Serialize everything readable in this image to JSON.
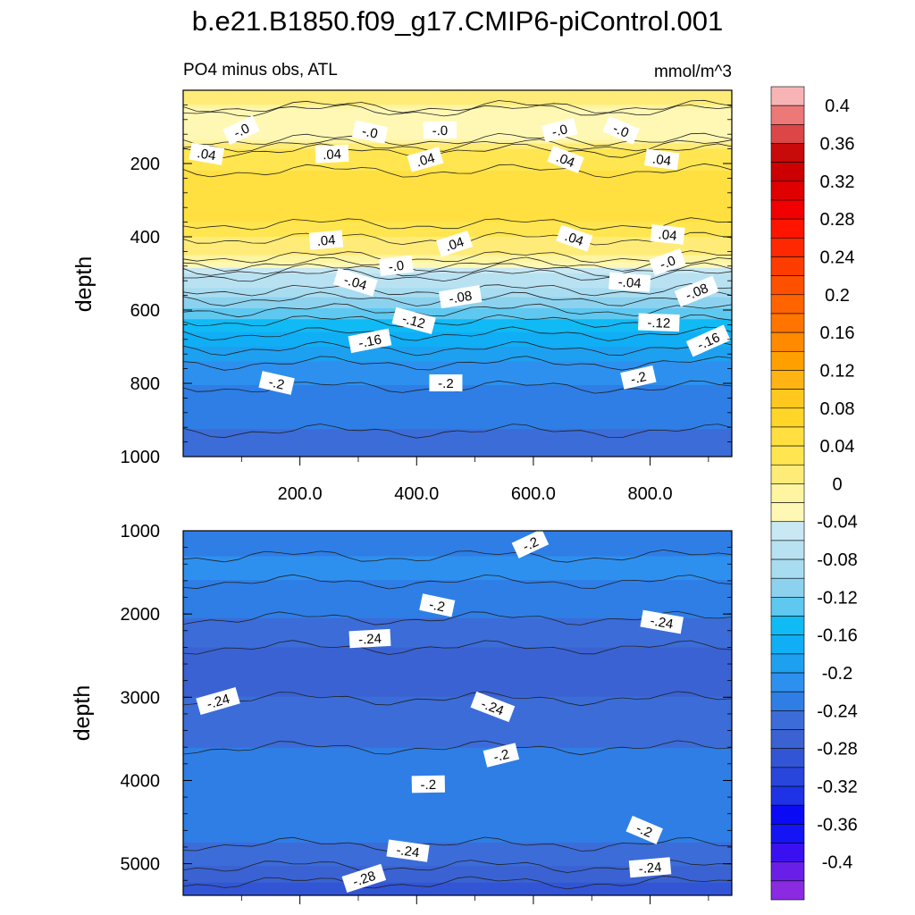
{
  "figure": {
    "title": "b.e21.B1850.f09_g17.CMIP6-piControl.001"
  },
  "chart_data": {
    "type": "heatmap",
    "title": "b.e21.B1850.f09_g17.CMIP6-piControl.001",
    "subtitle_left": "PO4 minus obs, ATL",
    "units": "mmol/m^3",
    "ylabel": "depth",
    "colorbar": {
      "levels": [
        -0.42,
        -0.4,
        -0.38,
        -0.36,
        -0.34,
        -0.32,
        -0.3,
        -0.28,
        -0.26,
        -0.24,
        -0.22,
        -0.2,
        -0.18,
        -0.16,
        -0.14,
        -0.12,
        -0.1,
        -0.08,
        -0.06,
        -0.04,
        -0.02,
        0,
        0.02,
        0.04,
        0.06,
        0.08,
        0.1,
        0.12,
        0.14,
        0.16,
        0.18,
        0.2,
        0.22,
        0.24,
        0.26,
        0.28,
        0.3,
        0.32,
        0.34,
        0.36,
        0.38,
        0.4,
        0.42
      ],
      "colors": [
        "#8a2be2",
        "#6a1fe8",
        "#3a0ff0",
        "#1414f5",
        "#0a0af5",
        "#1e32e6",
        "#2845dc",
        "#3255d6",
        "#3a62d2",
        "#3c6cd8",
        "#2e7ee6",
        "#2e90ee",
        "#1ea0f0",
        "#10aef5",
        "#10baf5",
        "#5ec8f0",
        "#8cd2ee",
        "#a8dcf0",
        "#b8e2f2",
        "#c8e8f4",
        "#fff8b4",
        "#fff4a0",
        "#ffec78",
        "#ffe650",
        "#ffe040",
        "#ffd528",
        "#ffc81e",
        "#ffb414",
        "#ffa000",
        "#ff8a00",
        "#ff7500",
        "#ff6400",
        "#ff5000",
        "#ff3c00",
        "#ff2800",
        "#ff1400",
        "#f00000",
        "#e00000",
        "#cc0000",
        "#c80a0a",
        "#dc4646",
        "#ec7878",
        "#f8b4b4"
      ],
      "tick_labels": [
        "0.4",
        "0.36",
        "0.32",
        "0.28",
        "0.24",
        "0.2",
        "0.16",
        "0.12",
        "0.08",
        "0.04",
        "0",
        "-0.04",
        "-0.08",
        "-0.12",
        "-0.16",
        "-0.2",
        "-0.24",
        "-0.28",
        "-0.32",
        "-0.36",
        "-0.4"
      ]
    },
    "panels": [
      {
        "name": "upper",
        "ylim": [
          0,
          1000
        ],
        "yticks": [
          "200",
          "400",
          "600",
          "800",
          "1000"
        ],
        "ytick_values": [
          200,
          400,
          600,
          800,
          1000
        ],
        "xlim": [
          0,
          940
        ],
        "xticks": [
          "200.0",
          "400.0",
          "600.0",
          "800.0"
        ],
        "xtick_values": [
          200,
          400,
          600,
          800
        ],
        "depth_profile": [
          {
            "depth": 0,
            "value": 0.02
          },
          {
            "depth": 40,
            "value": 0.02
          },
          {
            "depth": 60,
            "value": -0.02
          },
          {
            "depth": 120,
            "value": -0.02
          },
          {
            "depth": 160,
            "value": 0.04
          },
          {
            "depth": 220,
            "value": 0.06
          },
          {
            "depth": 300,
            "value": 0.07
          },
          {
            "depth": 360,
            "value": 0.06
          },
          {
            "depth": 400,
            "value": 0.04
          },
          {
            "depth": 440,
            "value": 0.03
          },
          {
            "depth": 470,
            "value": 0.0
          },
          {
            "depth": 500,
            "value": -0.04
          },
          {
            "depth": 540,
            "value": -0.06
          },
          {
            "depth": 580,
            "value": -0.09
          },
          {
            "depth": 640,
            "value": -0.13
          },
          {
            "depth": 700,
            "value": -0.16
          },
          {
            "depth": 760,
            "value": -0.19
          },
          {
            "depth": 850,
            "value": -0.21
          },
          {
            "depth": 1000,
            "value": -0.23
          }
        ],
        "contour_labels": [
          {
            "text": "-.0",
            "x": 100,
            "depth": 110
          },
          {
            "text": "-.0",
            "x": 320,
            "depth": 115
          },
          {
            "text": "-.0",
            "x": 440,
            "depth": 110
          },
          {
            "text": "-.0",
            "x": 645,
            "depth": 110
          },
          {
            "text": "-.0",
            "x": 750,
            "depth": 110
          },
          {
            "text": ".04",
            "x": 40,
            "depth": 175
          },
          {
            "text": ".04",
            "x": 255,
            "depth": 175
          },
          {
            "text": ".04",
            "x": 415,
            "depth": 190
          },
          {
            "text": ".04",
            "x": 655,
            "depth": 190
          },
          {
            "text": ".04",
            "x": 820,
            "depth": 190
          },
          {
            "text": ".04",
            "x": 245,
            "depth": 410
          },
          {
            "text": ".04",
            "x": 465,
            "depth": 420
          },
          {
            "text": ".04",
            "x": 670,
            "depth": 405
          },
          {
            "text": ".04",
            "x": 830,
            "depth": 395
          },
          {
            "text": "-.0",
            "x": 365,
            "depth": 480
          },
          {
            "text": "-.0",
            "x": 830,
            "depth": 470
          },
          {
            "text": "-.04",
            "x": 295,
            "depth": 525
          },
          {
            "text": "-.04",
            "x": 765,
            "depth": 525
          },
          {
            "text": "-.08",
            "x": 475,
            "depth": 565
          },
          {
            "text": "-.08",
            "x": 880,
            "depth": 550
          },
          {
            "text": "-.12",
            "x": 395,
            "depth": 630
          },
          {
            "text": "-.12",
            "x": 815,
            "depth": 635
          },
          {
            "text": "-.16",
            "x": 320,
            "depth": 685
          },
          {
            "text": "-.16",
            "x": 900,
            "depth": 685
          },
          {
            "text": "-.2",
            "x": 160,
            "depth": 800
          },
          {
            "text": "-.2",
            "x": 450,
            "depth": 800
          },
          {
            "text": "-.2",
            "x": 780,
            "depth": 785
          }
        ]
      },
      {
        "name": "lower",
        "ylim": [
          1000,
          5380
        ],
        "yticks": [
          "1000",
          "2000",
          "3000",
          "4000",
          "5000"
        ],
        "ytick_values": [
          1000,
          2000,
          3000,
          4000,
          5000
        ],
        "xlim": [
          0,
          940
        ],
        "xticks": [],
        "xtick_values": [
          200,
          400,
          600,
          800
        ],
        "depth_profile": [
          {
            "depth": 1000,
            "value": -0.22
          },
          {
            "depth": 1300,
            "value": -0.2
          },
          {
            "depth": 1600,
            "value": -0.2
          },
          {
            "depth": 1900,
            "value": -0.21
          },
          {
            "depth": 2200,
            "value": -0.23
          },
          {
            "depth": 2600,
            "value": -0.25
          },
          {
            "depth": 3000,
            "value": -0.24
          },
          {
            "depth": 3400,
            "value": -0.23
          },
          {
            "depth": 3800,
            "value": -0.21
          },
          {
            "depth": 4200,
            "value": -0.2
          },
          {
            "depth": 4600,
            "value": -0.21
          },
          {
            "depth": 4900,
            "value": -0.23
          },
          {
            "depth": 5150,
            "value": -0.25
          },
          {
            "depth": 5380,
            "value": -0.28
          }
        ],
        "contour_labels": [
          {
            "text": "-.2",
            "x": 595,
            "depth": 1160
          },
          {
            "text": "-.2",
            "x": 435,
            "depth": 1900
          },
          {
            "text": "-.2",
            "x": 420,
            "depth": 4050
          },
          {
            "text": "-.2",
            "x": 545,
            "depth": 3700
          },
          {
            "text": "-.2",
            "x": 790,
            "depth": 4600
          },
          {
            "text": "-.24",
            "x": 820,
            "depth": 2100
          },
          {
            "text": "-.24",
            "x": 320,
            "depth": 2300
          },
          {
            "text": "-.24",
            "x": 60,
            "depth": 3050
          },
          {
            "text": "-.24",
            "x": 530,
            "depth": 3120
          },
          {
            "text": "-.24",
            "x": 385,
            "depth": 4850
          },
          {
            "text": "-.24",
            "x": 800,
            "depth": 5050
          },
          {
            "text": "-.28",
            "x": 310,
            "depth": 5180
          }
        ]
      }
    ]
  }
}
